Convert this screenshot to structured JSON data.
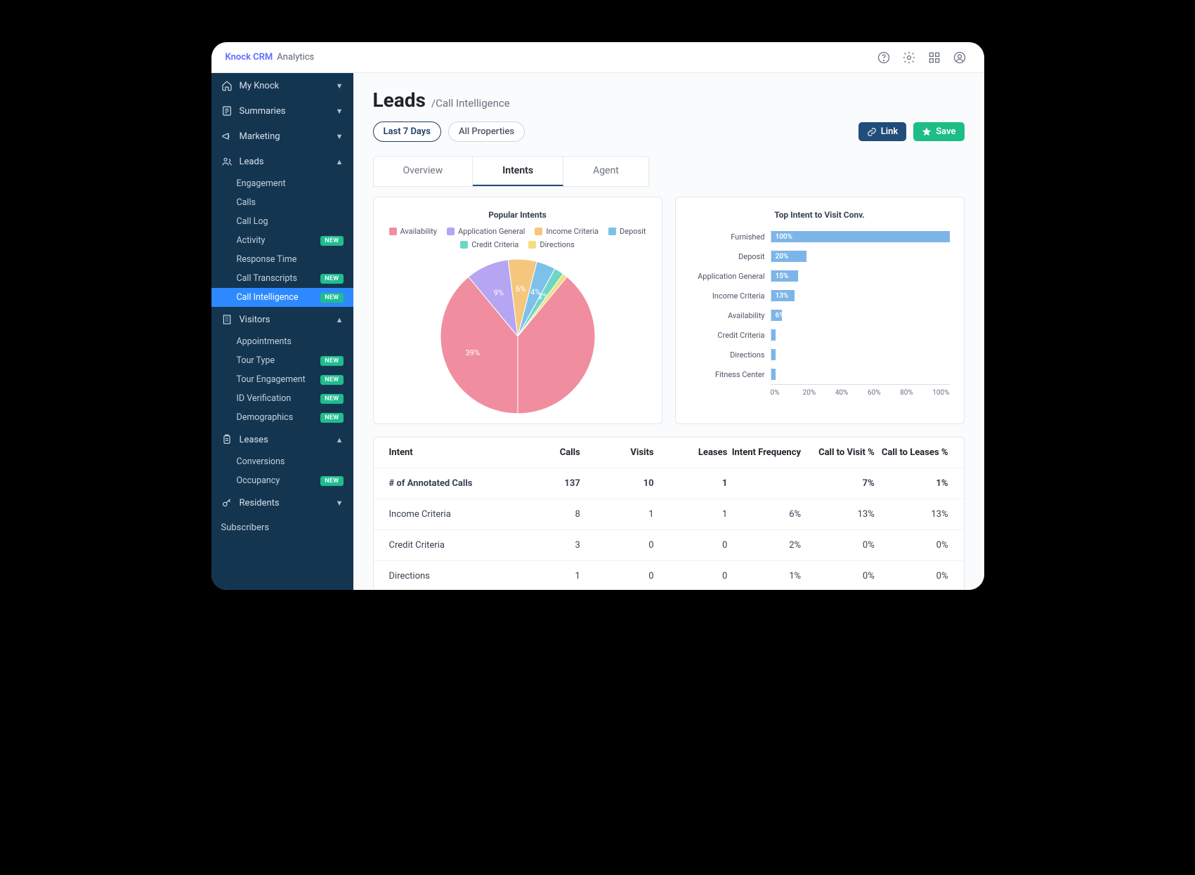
{
  "topbar": {
    "brand": "Knock CRM",
    "section": "Analytics"
  },
  "sidebar": {
    "groups": [
      {
        "label": "My Knock",
        "icon": "home",
        "open": false,
        "items": []
      },
      {
        "label": "Summaries",
        "icon": "summary",
        "open": false,
        "items": []
      },
      {
        "label": "Marketing",
        "icon": "megaphone",
        "open": false,
        "items": []
      },
      {
        "label": "Leads",
        "icon": "users",
        "open": true,
        "items": [
          {
            "label": "Engagement"
          },
          {
            "label": "Calls"
          },
          {
            "label": "Call Log"
          },
          {
            "label": "Activity",
            "badge": "NEW"
          },
          {
            "label": "Response Time"
          },
          {
            "label": "Call Transcripts",
            "badge": "NEW"
          },
          {
            "label": "Call Intelligence",
            "badge": "NEW",
            "active": true
          }
        ]
      },
      {
        "label": "Visitors",
        "icon": "building",
        "open": true,
        "items": [
          {
            "label": "Appointments"
          },
          {
            "label": "Tour Type",
            "badge": "NEW"
          },
          {
            "label": "Tour Engagement",
            "badge": "NEW"
          },
          {
            "label": "ID Verification",
            "badge": "NEW"
          },
          {
            "label": "Demographics",
            "badge": "NEW"
          }
        ]
      },
      {
        "label": "Leases",
        "icon": "clipboard",
        "open": true,
        "items": [
          {
            "label": "Conversions"
          },
          {
            "label": "Occupancy",
            "badge": "NEW"
          }
        ]
      },
      {
        "label": "Residents",
        "icon": "key",
        "open": false,
        "items": []
      }
    ],
    "footer": "Subscribers"
  },
  "page": {
    "title": "Leads",
    "crumb": "/Call Intelligence",
    "filters": {
      "date": "Last 7 Days",
      "property": "All Properties"
    },
    "actions": {
      "link": "Link",
      "save": "Save"
    }
  },
  "tabs": [
    "Overview",
    "Intents",
    "Agent"
  ],
  "tabs_active": 1,
  "pie": {
    "title": "Popular Intents",
    "slices": [
      {
        "label": "Availability",
        "value": 39,
        "color": "#f08ea0",
        "show_label": "39%"
      },
      {
        "label": "Application General",
        "value": 9,
        "color": "#b5a5f2",
        "show_label": "9%"
      },
      {
        "label": "Income Criteria",
        "value": 6,
        "color": "#f5c77e",
        "show_label": "6%"
      },
      {
        "label": "Deposit",
        "value": 4,
        "color": "#7cc1ea",
        "show_label": "4%"
      },
      {
        "label": "Credit Criteria",
        "value": 2,
        "color": "#6fd6c4",
        "show_label": "2%"
      },
      {
        "label": "Directions",
        "value": 1,
        "color": "#f2de7e",
        "show_label": ""
      },
      {
        "label": "_rest",
        "value": 39,
        "color": "#f08ea0",
        "show_label": ""
      }
    ],
    "radius": 110
  },
  "bar": {
    "title": "Top Intent to Visit Conv.",
    "color": "#7cb5e8",
    "rows": [
      {
        "label": "Furnished",
        "value": 100,
        "text": "100%"
      },
      {
        "label": "Deposit",
        "value": 20,
        "text": "20%"
      },
      {
        "label": "Application General",
        "value": 15,
        "text": "15%"
      },
      {
        "label": "Income Criteria",
        "value": 13,
        "text": "13%"
      },
      {
        "label": "Availability",
        "value": 6,
        "text": "6%"
      },
      {
        "label": "Credit Criteria",
        "value": 0,
        "text": ""
      },
      {
        "label": "Directions",
        "value": 0,
        "text": ""
      },
      {
        "label": "Fitness Center",
        "value": 0,
        "text": ""
      }
    ],
    "axis": [
      "0%",
      "20%",
      "40%",
      "60%",
      "80%",
      "100%"
    ]
  },
  "table": {
    "columns": [
      "Intent",
      "Calls",
      "Visits",
      "Leases",
      "Intent Frequency",
      "Call to Visit %",
      "Call to Leases %"
    ],
    "rows": [
      {
        "bold": true,
        "cells": [
          "# of Annotated Calls",
          "137",
          "10",
          "1",
          "",
          "7%",
          "1%"
        ]
      },
      {
        "cells": [
          "Income Criteria",
          "8",
          "1",
          "1",
          "6%",
          "13%",
          "13%"
        ]
      },
      {
        "cells": [
          "Credit Criteria",
          "3",
          "0",
          "0",
          "2%",
          "0%",
          "0%"
        ]
      },
      {
        "cells": [
          "Directions",
          "1",
          "0",
          "0",
          "1%",
          "0%",
          "0%"
        ]
      }
    ]
  }
}
